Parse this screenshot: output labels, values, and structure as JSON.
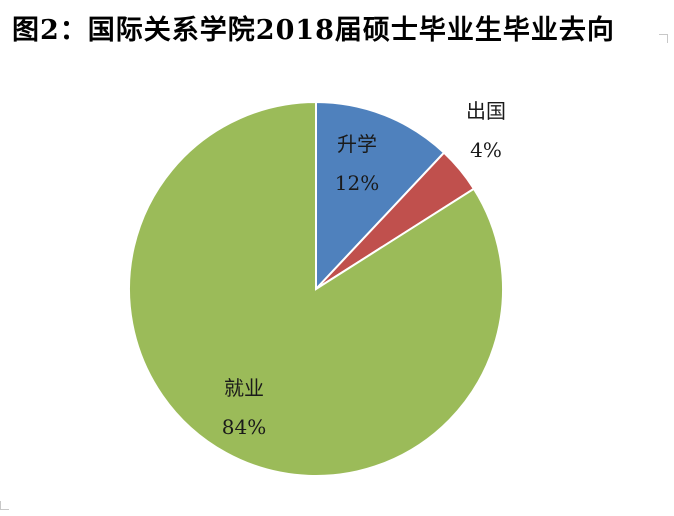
{
  "chart_data": {
    "type": "pie",
    "title": "图2：国际关系学院2018届硕士毕业生毕业去向",
    "slices": [
      {
        "name": "升学",
        "value": 12,
        "value_label": "12%",
        "color": "#4f81bd"
      },
      {
        "name": "出国",
        "value": 4,
        "value_label": "4%",
        "color": "#c0504d"
      },
      {
        "name": "就业",
        "value": 84,
        "value_label": "84%",
        "color": "#9bbb59"
      }
    ],
    "start_angle": "12 o'clock",
    "direction": "clockwise",
    "slice_border_color": "#ffffff"
  }
}
